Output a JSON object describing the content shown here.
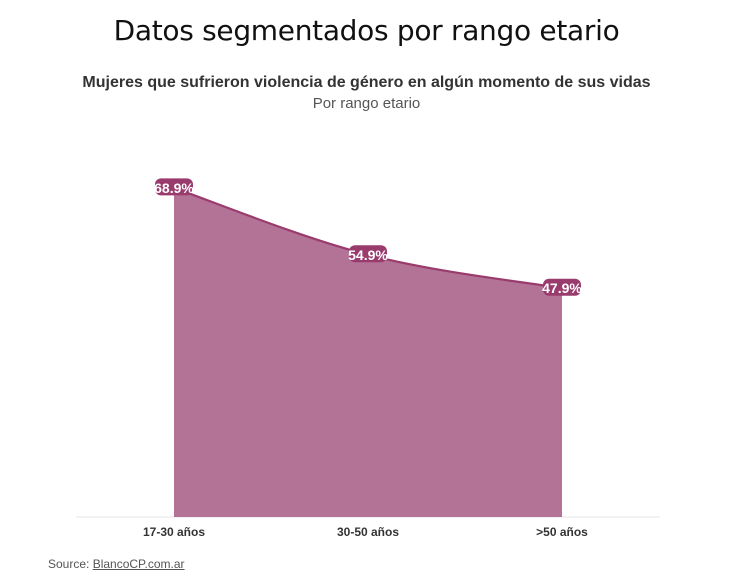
{
  "header": {
    "title": "Datos segmentados por rango etario"
  },
  "chart_data": {
    "type": "area",
    "title": "Mujeres que sufrieron violencia de género en algún momento de sus vidas",
    "subtitle": "Por rango etario",
    "categories": [
      "17-30 años",
      "30-50 años",
      ">50 años"
    ],
    "series": [
      {
        "values": [
          68.9,
          54.9,
          47.9
        ],
        "labels": [
          "68.9%",
          "54.9%",
          "47.9%"
        ]
      }
    ],
    "ylim": [
      0,
      85
    ],
    "grid": false,
    "colors": {
      "fill": "#b37396",
      "line": "#9a3b6e",
      "label_bg": "#9a3b6e",
      "label_text": "#ffffff"
    }
  },
  "footer": {
    "source_prefix": "Source: ",
    "source_link": "BlancoCP.com.ar"
  }
}
